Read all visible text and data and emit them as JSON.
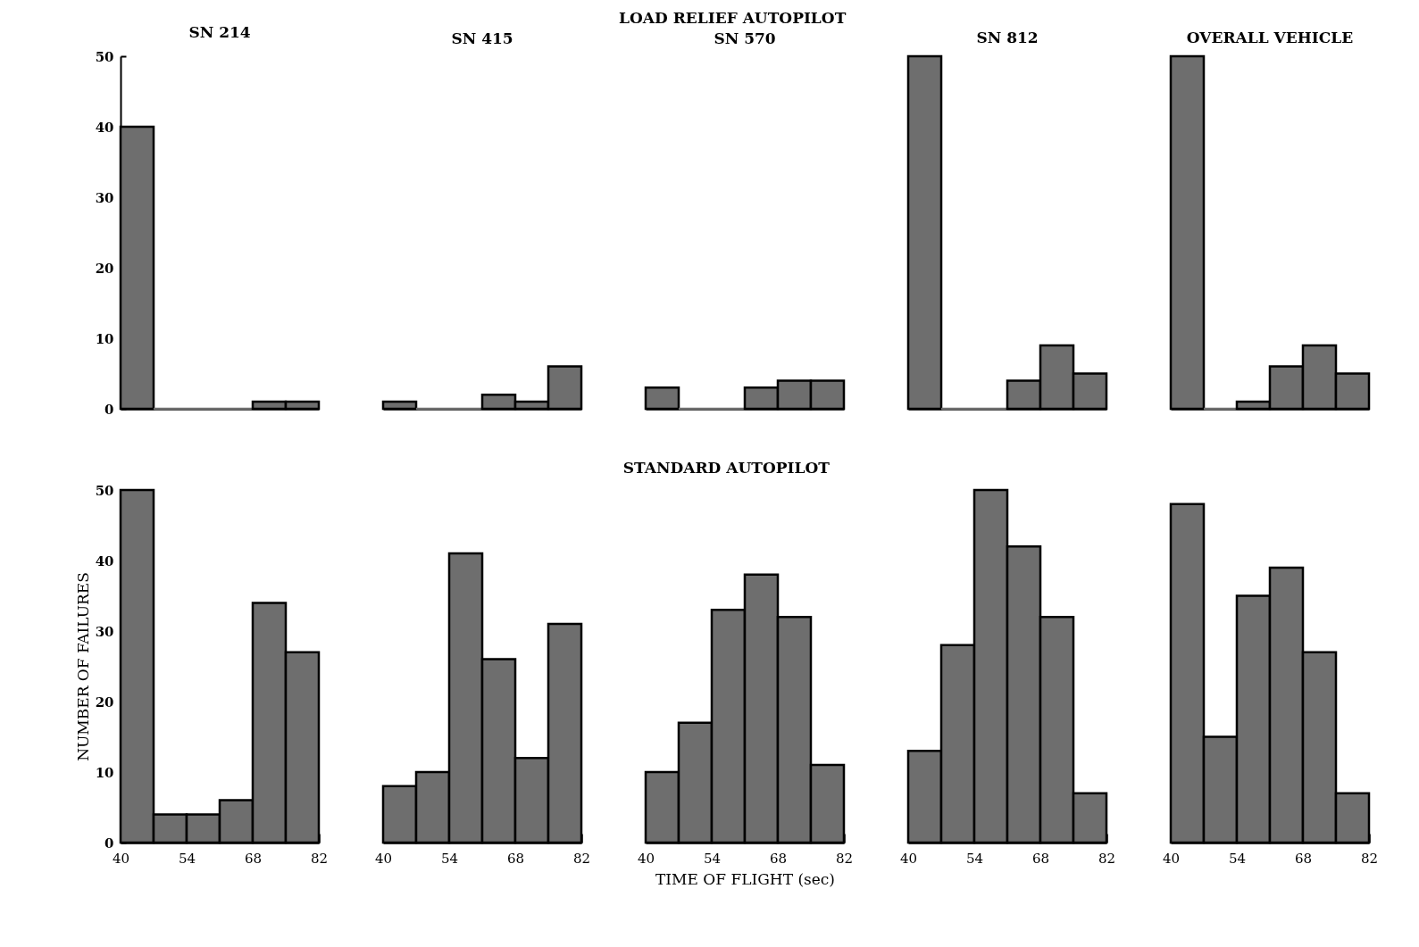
{
  "chart_data": [
    {
      "type": "histogram",
      "title": "SN 214",
      "annotations": [
        "LOAD RELIEF AUTOPILOT"
      ],
      "bins": [
        40,
        47,
        54,
        61,
        68,
        75,
        82
      ],
      "values": [
        40,
        0,
        0,
        0,
        1,
        1
      ],
      "color": "#6e6e6e",
      "xlim": [
        40,
        82
      ],
      "ylim": [
        0,
        50
      ],
      "yticks": [
        0,
        10,
        20,
        30,
        40,
        50
      ],
      "tick_labels": "y"
    },
    {
      "type": "histogram",
      "title": "SN 415",
      "bins": [
        40,
        47,
        54,
        61,
        68,
        75,
        82
      ],
      "values": [
        1,
        0,
        0,
        2,
        1,
        6
      ],
      "color": "#6e6e6e",
      "xlim": [
        40,
        82
      ],
      "ylim": [
        0,
        50
      ],
      "tick_labels": false
    },
    {
      "type": "histogram",
      "title": "SN 570",
      "bins": [
        40,
        47,
        54,
        61,
        68,
        75,
        82
      ],
      "values": [
        3,
        0,
        0,
        3,
        4,
        4
      ],
      "color": "#6e6e6e",
      "xlim": [
        40,
        82
      ],
      "ylim": [
        0,
        50
      ],
      "tick_labels": false
    },
    {
      "type": "histogram",
      "title": "SN 812",
      "bins": [
        40,
        47,
        54,
        61,
        68,
        75,
        82
      ],
      "values": [
        50,
        0,
        0,
        4,
        9,
        5
      ],
      "color": "#6e6e6e",
      "xlim": [
        40,
        82
      ],
      "ylim": [
        0,
        50
      ],
      "tick_labels": false
    },
    {
      "type": "histogram",
      "title": "OVERALL VEHICLE",
      "bins": [
        40,
        47,
        54,
        61,
        68,
        75,
        82
      ],
      "values": [
        50,
        0,
        1,
        6,
        9,
        5
      ],
      "color": "#6e6e6e",
      "xlim": [
        40,
        82
      ],
      "ylim": [
        0,
        50
      ],
      "tick_labels": false
    },
    {
      "type": "histogram",
      "ylabel": "NUMBER OF FAILURES",
      "annotations": [
        "STANDARD AUTOPILOT"
      ],
      "bins": [
        40,
        47,
        54,
        61,
        68,
        75,
        82
      ],
      "values": [
        50,
        4,
        4,
        6,
        34,
        27
      ],
      "color": "#6e6e6e",
      "xlim": [
        40,
        82
      ],
      "xticks": [
        40,
        {
          "value": 47,
          "label": null
        },
        54,
        {
          "value": 61,
          "label": null
        },
        68,
        {
          "value": 75,
          "label": null
        },
        82
      ],
      "ylim": [
        0,
        50
      ],
      "yticks": [
        0,
        10,
        20,
        30,
        40,
        50
      ]
    },
    {
      "type": "histogram",
      "bins": [
        40,
        47,
        54,
        61,
        68,
        75,
        82
      ],
      "values": [
        8,
        10,
        41,
        26,
        12,
        31
      ],
      "color": "#6e6e6e",
      "xlim": [
        40,
        82
      ],
      "xticks": [
        40,
        {
          "value": 47,
          "label": null
        },
        54,
        {
          "value": 61,
          "label": null
        },
        68,
        {
          "value": 75,
          "label": null
        },
        82
      ],
      "ylim": [
        0,
        50
      ],
      "tick_labels": "x"
    },
    {
      "type": "histogram",
      "xlabel": "TIME OF FLIGHT (sec)",
      "bins": [
        40,
        47,
        54,
        61,
        68,
        75,
        82
      ],
      "values": [
        10,
        17,
        33,
        38,
        32,
        11
      ],
      "color": "#6e6e6e",
      "xlim": [
        40,
        82
      ],
      "xticks": [
        40,
        {
          "value": 47,
          "label": null
        },
        54,
        {
          "value": 61,
          "label": null
        },
        68,
        {
          "value": 75,
          "label": null
        },
        82
      ],
      "ylim": [
        0,
        50
      ],
      "tick_labels": "x"
    },
    {
      "type": "histogram",
      "bins": [
        40,
        47,
        54,
        61,
        68,
        75,
        82
      ],
      "values": [
        13,
        28,
        50,
        42,
        32,
        7
      ],
      "color": "#6e6e6e",
      "xlim": [
        40,
        82
      ],
      "xticks": [
        40,
        {
          "value": 47,
          "label": null
        },
        54,
        {
          "value": 61,
          "label": null
        },
        68,
        {
          "value": 75,
          "label": null
        },
        82
      ],
      "ylim": [
        0,
        50
      ],
      "tick_labels": "x"
    },
    {
      "type": "histogram",
      "bins": [
        40,
        47,
        54,
        61,
        68,
        75,
        82
      ],
      "values": [
        48,
        15,
        35,
        39,
        27,
        7
      ],
      "color": "#6e6e6e",
      "xlim": [
        40,
        82
      ],
      "xticks": [
        40,
        {
          "value": 47,
          "label": null
        },
        54,
        {
          "value": 61,
          "label": null
        },
        68,
        {
          "value": 75,
          "label": null
        },
        82
      ],
      "ylim": [
        0,
        50
      ],
      "tick_labels": "x"
    }
  ]
}
